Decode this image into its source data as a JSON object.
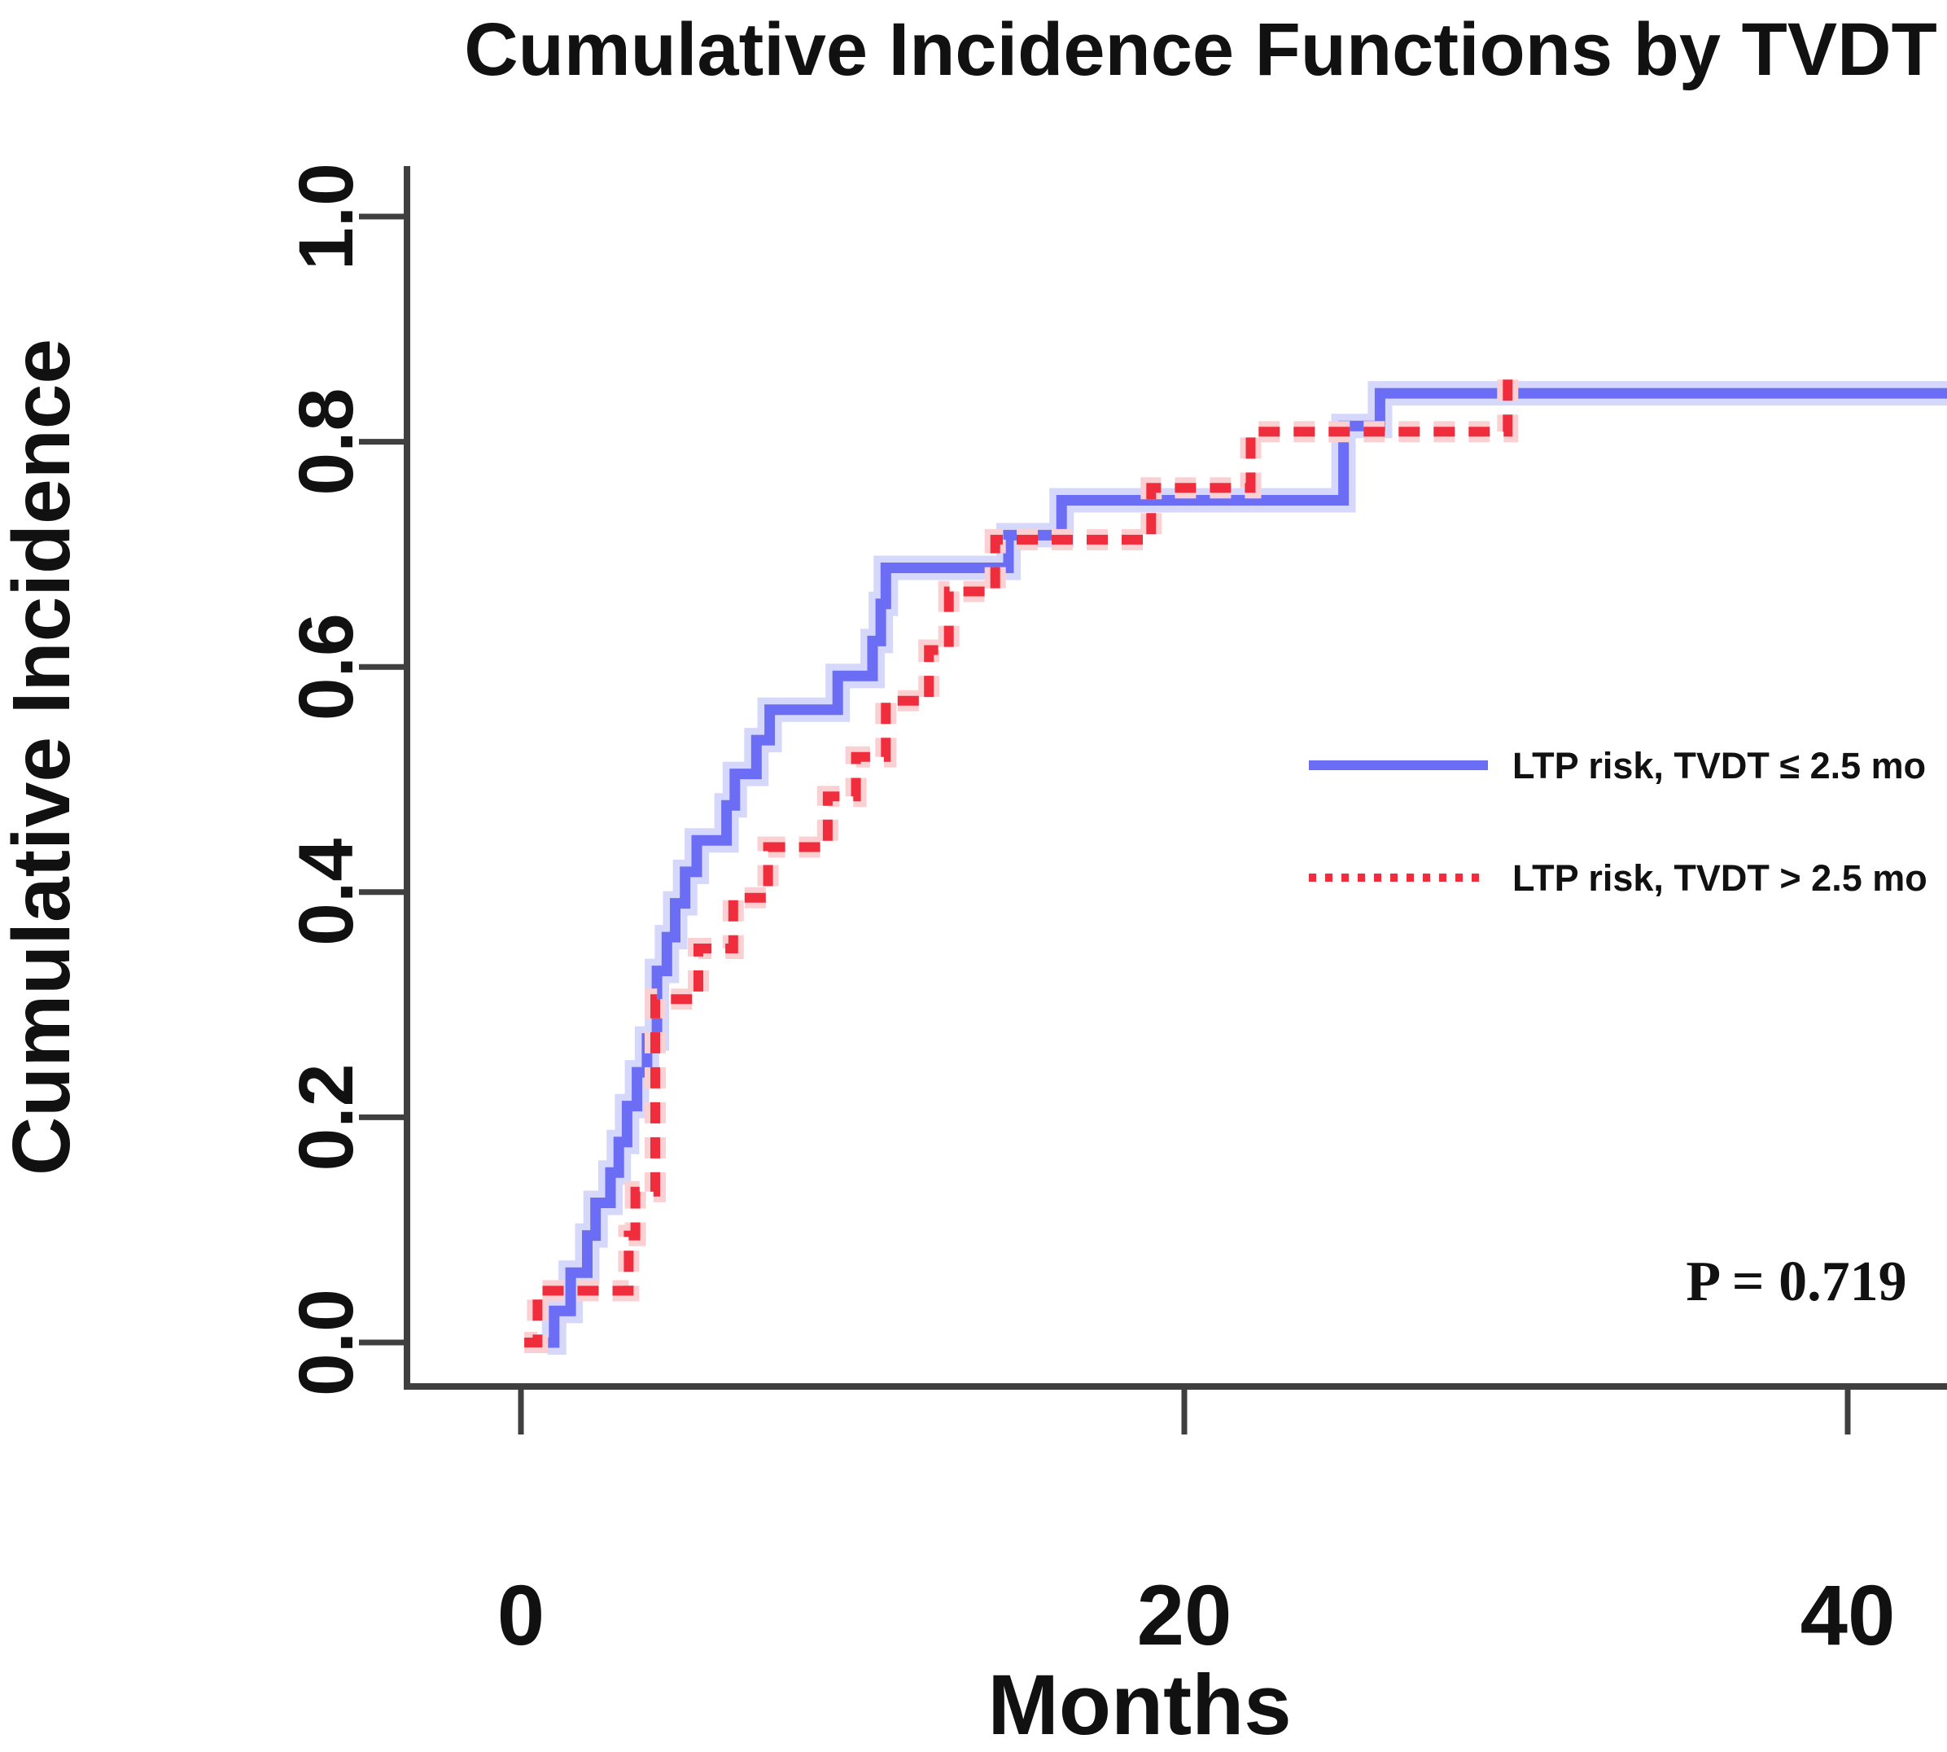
{
  "title": "Cumulative Incidence Functions by TVDT",
  "axes": {
    "x": {
      "label": "Months",
      "ticks": [
        "0",
        "20",
        "40"
      ]
    },
    "y": {
      "label": "Cumulative Incidence",
      "ticks": [
        "0.0",
        "0.2",
        "0.4",
        "0.6",
        "0.8",
        "1.0"
      ]
    }
  },
  "legend": {
    "entries": [
      {
        "label": "LTP risk, TVDT ≤ 2.5 mo",
        "style": "solid",
        "color": "#6b6df5"
      },
      {
        "label": "LTP risk, TVDT > 2.5 mo",
        "style": "dashed",
        "color": "#f02d3c"
      }
    ]
  },
  "annotation": {
    "p_value": "P = 0.719"
  },
  "colors": {
    "blue_core": "#6b6df5",
    "blue_halo": "#d6d8fb",
    "red_core": "#f02d3c",
    "red_halo": "#fbd0d2",
    "axis": "#3f3f3f"
  },
  "chart_data": {
    "type": "line",
    "subtype": "step-function-cumulative-incidence",
    "title": "Cumulative Incidence Functions by TVDT",
    "xlabel": "Months",
    "ylabel": "Cumulative Incidence",
    "xlim": [
      0,
      43
    ],
    "ylim": [
      0,
      1.0
    ],
    "x_ticks": [
      0,
      20,
      40
    ],
    "y_ticks": [
      0.0,
      0.2,
      0.4,
      0.6,
      0.8,
      1.0
    ],
    "grid": false,
    "legend_position": "right-middle",
    "p_value_annotation": "P = 0.719",
    "series": [
      {
        "name": "LTP risk, TVDT ≤ 2.5 mo",
        "color": "#6b6df5",
        "line_style": "solid",
        "steps": [
          [
            0.8,
            0
          ],
          [
            1.0,
            0.028
          ],
          [
            1.5,
            0.062
          ],
          [
            2.0,
            0.095
          ],
          [
            2.25,
            0.124
          ],
          [
            2.7,
            0.151
          ],
          [
            2.95,
            0.178
          ],
          [
            3.2,
            0.21
          ],
          [
            3.5,
            0.24
          ],
          [
            3.8,
            0.27
          ],
          [
            4.1,
            0.33
          ],
          [
            4.4,
            0.36
          ],
          [
            4.65,
            0.39
          ],
          [
            4.95,
            0.418
          ],
          [
            5.3,
            0.446
          ],
          [
            6.2,
            0.477
          ],
          [
            6.45,
            0.505
          ],
          [
            7.1,
            0.535
          ],
          [
            7.5,
            0.562
          ],
          [
            9.55,
            0.592
          ],
          [
            10.6,
            0.623
          ],
          [
            10.85,
            0.656
          ],
          [
            11.0,
            0.688
          ],
          [
            14.7,
            0.717
          ],
          [
            16.3,
            0.748
          ],
          [
            24.8,
            0.814
          ],
          [
            25.9,
            0.843
          ]
        ],
        "extend_to": 43
      },
      {
        "name": "LTP risk, TVDT > 2.5 mo",
        "color": "#f02d3c",
        "line_style": "dashed",
        "steps": [
          [
            0.1,
            0
          ],
          [
            0.5,
            0.046
          ],
          [
            3.25,
            0.095
          ],
          [
            3.45,
            0.134
          ],
          [
            4.05,
            0.305
          ],
          [
            5.35,
            0.35
          ],
          [
            6.4,
            0.395
          ],
          [
            7.45,
            0.44
          ],
          [
            9.25,
            0.485
          ],
          [
            10.1,
            0.52
          ],
          [
            11.0,
            0.57
          ],
          [
            12.3,
            0.615
          ],
          [
            12.9,
            0.667
          ],
          [
            14.3,
            0.713
          ],
          [
            19.0,
            0.759
          ],
          [
            22.0,
            0.809
          ],
          [
            29.75,
            0.857
          ]
        ],
        "extend_to": 29.9
      }
    ]
  }
}
